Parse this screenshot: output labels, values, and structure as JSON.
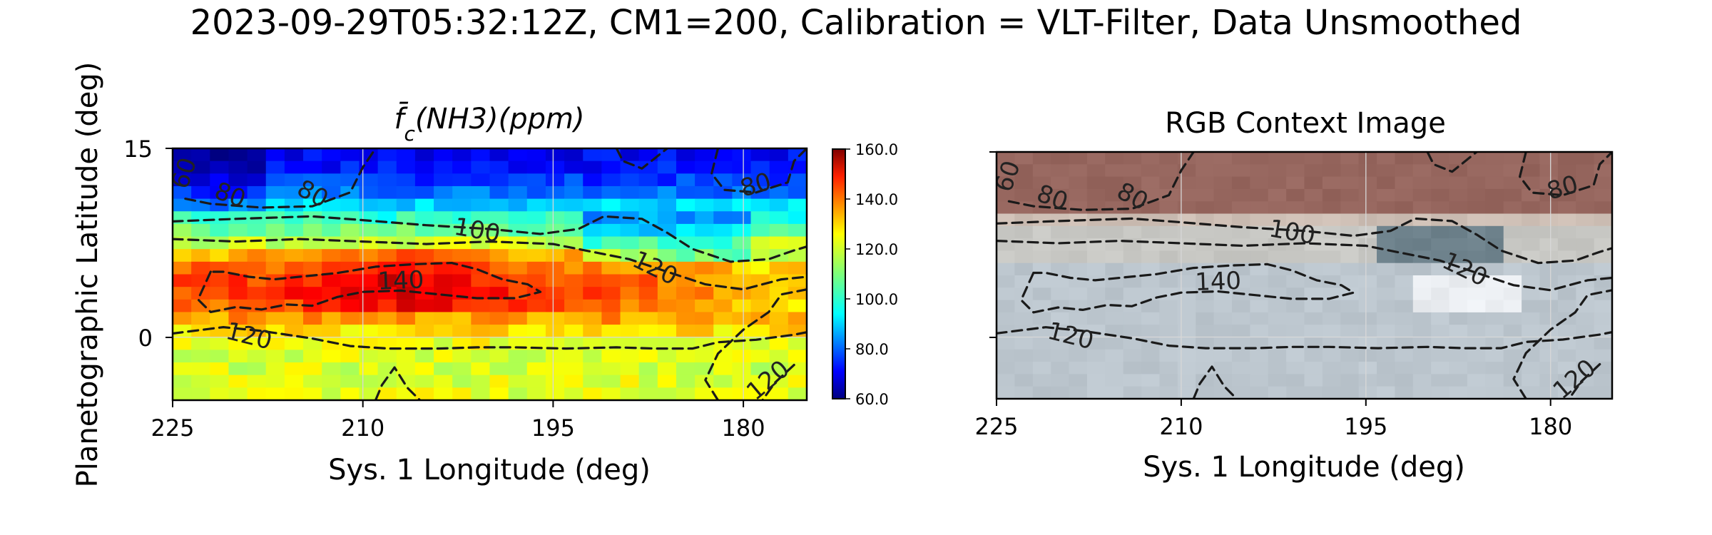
{
  "figure": {
    "suptitle": "2023-09-29T05:32:12Z, CM1=200, Calibration = VLT-Filter, Data Unsmoothed"
  },
  "chart_data": [
    {
      "type": "heatmap",
      "title": "f̄c(NH3)(ppm)",
      "xlabel": "Sys. 1 Longitude (deg)",
      "ylabel": "Planetographic Latitude (deg)",
      "xlim": [
        225,
        175
      ],
      "ylim": [
        -5,
        15
      ],
      "xticks": [
        "225",
        "210",
        "195",
        "180"
      ],
      "yticks": [
        "15",
        "0"
      ],
      "colormap": "jet",
      "colorbar": {
        "range": [
          60.0,
          160.0
        ],
        "ticks": [
          "160.0",
          "140.0",
          "120.0",
          "100.0",
          "80.0",
          "60.0"
        ]
      },
      "contour_levels": [
        60,
        80,
        100,
        120,
        140
      ],
      "contour_labels": [
        "60",
        "80",
        "80",
        "80",
        "100",
        "140",
        "120",
        "120",
        "120"
      ],
      "rows_latitude_profile": {
        "latitude": [
          14,
          12,
          10,
          8,
          6,
          4,
          2,
          0,
          -2,
          -4
        ],
        "typical_value_ppm": [
          72,
          80,
          98,
          112,
          134,
          142,
          136,
          122,
          118,
          120
        ]
      }
    },
    {
      "type": "image",
      "title": "RGB Context Image",
      "xlabel": "Sys. 1 Longitude (deg)",
      "xlim": [
        225,
        175
      ],
      "ylim": [
        -5,
        15
      ],
      "xticks": [
        "225",
        "210",
        "195",
        "180"
      ],
      "contour_labels": [
        "60",
        "80",
        "80",
        "80",
        "100",
        "140",
        "120",
        "120",
        "120"
      ]
    }
  ],
  "colors": {
    "belt": "#9a6b60",
    "zone": "#c9d1d6",
    "contour": "#1a1a1a"
  }
}
